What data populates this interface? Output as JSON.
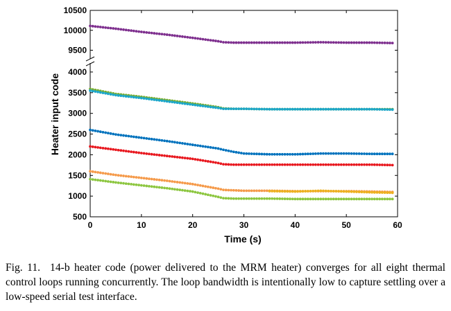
{
  "chart_data": {
    "type": "scatter",
    "xlabel": "Time (s)",
    "ylabel": "Heater input code",
    "xlim": [
      0,
      60
    ],
    "x_ticks": [
      "0",
      "10",
      "20",
      "30",
      "40",
      "50",
      "60"
    ],
    "y_axis_break": true,
    "y_ticks_upper": [
      "9500",
      "10000",
      "10500"
    ],
    "y_ticks_lower": [
      "500",
      "1000",
      "1500",
      "2000",
      "2500",
      "3000",
      "3500",
      "4000"
    ],
    "ylim_upper": [
      9300,
      10500
    ],
    "ylim_lower": [
      500,
      4200
    ],
    "grid": false,
    "series": [
      {
        "color": "#7e2f8e",
        "x": [
          0,
          5,
          10,
          15,
          20,
          25,
          26,
          28,
          30,
          35,
          40,
          45,
          50,
          55,
          59
        ],
        "values": [
          10110,
          10040,
          9960,
          9890,
          9810,
          9725,
          9700,
          9690,
          9690,
          9690,
          9690,
          9700,
          9690,
          9690,
          9680
        ]
      },
      {
        "color": "#77ac30",
        "x": [
          0,
          5,
          10,
          15,
          20,
          25,
          26,
          28,
          30,
          35,
          40,
          45,
          50,
          55,
          59
        ],
        "values": [
          3590,
          3470,
          3400,
          3320,
          3240,
          3150,
          3120,
          3110,
          3110,
          3100,
          3100,
          3100,
          3100,
          3100,
          3100
        ]
      },
      {
        "color": "#1ba6c9",
        "x": [
          0,
          5,
          10,
          15,
          20,
          25,
          26,
          28,
          30,
          35,
          40,
          45,
          50,
          55,
          59
        ],
        "values": [
          3550,
          3440,
          3370,
          3290,
          3210,
          3130,
          3110,
          3110,
          3110,
          3100,
          3100,
          3100,
          3100,
          3100,
          3090
        ]
      },
      {
        "color": "#0072bd",
        "x": [
          0,
          5,
          10,
          15,
          20,
          25,
          26,
          28,
          30,
          35,
          40,
          45,
          50,
          55,
          59
        ],
        "values": [
          2600,
          2490,
          2410,
          2330,
          2240,
          2150,
          2120,
          2070,
          2030,
          2010,
          2010,
          2030,
          2030,
          2020,
          2020
        ]
      },
      {
        "color": "#e8171e",
        "x": [
          0,
          5,
          10,
          15,
          20,
          25,
          26,
          28,
          30,
          35,
          40,
          45,
          50,
          55,
          59
        ],
        "values": [
          2200,
          2120,
          2040,
          1970,
          1900,
          1800,
          1770,
          1760,
          1760,
          1760,
          1760,
          1760,
          1760,
          1760,
          1750
        ]
      },
      {
        "color": "#f59a4a",
        "x": [
          0,
          5,
          10,
          15,
          20,
          25,
          26,
          28,
          30,
          35,
          40,
          45,
          50,
          55,
          59
        ],
        "values": [
          1600,
          1510,
          1440,
          1370,
          1290,
          1180,
          1150,
          1140,
          1130,
          1130,
          1120,
          1120,
          1120,
          1110,
          1100
        ]
      },
      {
        "color": "#edb120",
        "x": [
          35,
          40,
          45,
          50,
          55,
          59
        ],
        "values": [
          1120,
          1110,
          1130,
          1110,
          1090,
          1080
        ]
      },
      {
        "color": "#8cc63f",
        "x": [
          0,
          5,
          10,
          15,
          20,
          25,
          26,
          28,
          30,
          35,
          40,
          45,
          50,
          55,
          59
        ],
        "values": [
          1410,
          1330,
          1260,
          1190,
          1110,
          980,
          950,
          940,
          940,
          940,
          930,
          930,
          930,
          930,
          930
        ]
      }
    ]
  },
  "caption": {
    "figure_label": "Fig. 11.",
    "text": "14-b heater code (power delivered to the MRM heater) converges for all eight thermal control loops running concurrently. The loop bandwidth is intentionally low to capture settling over a low-speed serial test interface."
  }
}
